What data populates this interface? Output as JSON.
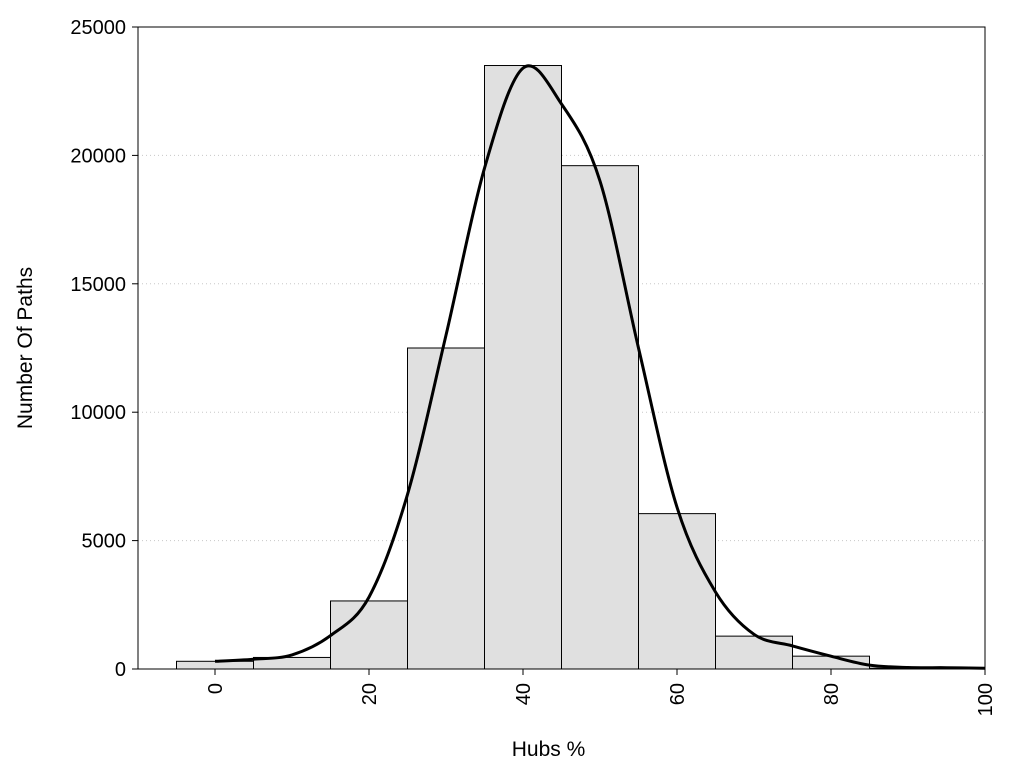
{
  "chart_data": {
    "type": "bar",
    "xlabel": "Hubs %",
    "ylabel": "Number Of Paths",
    "xlim": [
      -10,
      100
    ],
    "ylim": [
      0,
      25000
    ],
    "grid": "horizontal dotted",
    "legend": "none",
    "bar_color": "#e0e0e0",
    "x_ticks": [
      0,
      20,
      40,
      60,
      80,
      100
    ],
    "y_ticks": [
      0,
      5000,
      10000,
      15000,
      20000,
      25000
    ],
    "bars": [
      {
        "x0": -5,
        "x1": 5,
        "value": 300
      },
      {
        "x0": 5,
        "x1": 15,
        "value": 450
      },
      {
        "x0": 15,
        "x1": 25,
        "value": 2650
      },
      {
        "x0": 25,
        "x1": 35,
        "value": 12500
      },
      {
        "x0": 35,
        "x1": 45,
        "value": 23500
      },
      {
        "x0": 45,
        "x1": 55,
        "value": 19600
      },
      {
        "x0": 55,
        "x1": 65,
        "value": 6050
      },
      {
        "x0": 65,
        "x1": 75,
        "value": 1280
      },
      {
        "x0": 75,
        "x1": 85,
        "value": 500
      },
      {
        "x0": 85,
        "x1": 95,
        "value": 30
      }
    ],
    "density_curve": {
      "x": [
        0,
        5,
        10,
        15,
        20,
        25,
        30,
        35,
        40,
        45,
        50,
        55,
        60,
        65,
        70,
        75,
        80,
        85,
        90,
        95,
        100
      ],
      "y": [
        300,
        380,
        550,
        1300,
        2800,
        6800,
        13000,
        19500,
        23400,
        22000,
        19000,
        12500,
        6300,
        3000,
        1350,
        900,
        500,
        150,
        60,
        50,
        30
      ]
    }
  }
}
